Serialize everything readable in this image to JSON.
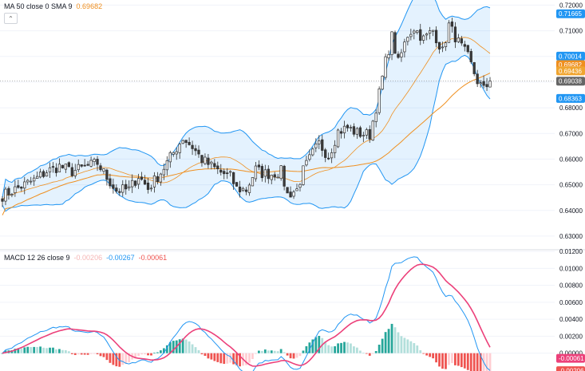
{
  "legend_ma": {
    "label": "MA 50 close 0 SMA 9",
    "value": "0.69682"
  },
  "legend_macd": {
    "label": "MACD 12 26 close 9",
    "hist": "-0.00206",
    "macd": "-0.00267",
    "signal": "-0.00061"
  },
  "collapse_icon": "chevron-up-icon",
  "colors": {
    "up": "#ffffff",
    "down": "#3a3a3a",
    "wick": "#2f2f2f",
    "bb_line": "#2196f3",
    "bb_fill": "rgba(33,150,243,0.12)",
    "ma": "#ef8f1f",
    "basis": "#2196f3",
    "macd_line": "#2196f3",
    "signal_line": "#ec407a",
    "hist_up_strong": "#26a69a",
    "hist_up_weak": "#b2dfdb",
    "hist_down_strong": "#ef5350",
    "hist_down_weak": "#ffcdd2",
    "badge_blue": "#2196f3",
    "badge_orange": "#ef8f1f",
    "badge_gray": "#666666"
  },
  "price_axis": {
    "ticks": [
      "0.72000",
      "0.71000",
      "0.70000",
      "0.69000",
      "0.68000",
      "0.67000",
      "0.66000",
      "0.65000",
      "0.64000",
      "0.63000"
    ],
    "badges": [
      {
        "text": "0.71665",
        "value": 0.71665,
        "color": "#2196f3"
      },
      {
        "text": "0.70014",
        "value": 0.70014,
        "color": "#2196f3"
      },
      {
        "text": "0.69682",
        "value": 0.69682,
        "color": "#ef8f1f"
      },
      {
        "text": "0.69436",
        "value": 0.69436,
        "color": "#f0a530"
      },
      {
        "text": "0.69038",
        "value": 0.69038,
        "color": "#666666"
      },
      {
        "text": "0.68363",
        "value": 0.68363,
        "color": "#2196f3"
      }
    ],
    "last_price": 0.69038
  },
  "macd_axis": {
    "ticks": [
      "0.01200",
      "0.01000",
      "0.00800",
      "0.00600",
      "0.00400",
      "0.00200",
      "0.00000"
    ],
    "badges": [
      {
        "text": "-0.00061",
        "value": -0.00061,
        "color": "#ec407a"
      },
      {
        "text": "-0.00206",
        "value": -0.00206,
        "color": "#ef5350"
      }
    ]
  },
  "chart_data": {
    "type": "candlestick",
    "price_ylim": [
      0.625,
      0.722
    ],
    "macd_ylim": [
      -0.0021,
      0.0121
    ],
    "anchors": [
      [
        0,
        0.6458
      ],
      [
        5,
        0.6488
      ],
      [
        10,
        0.6518
      ],
      [
        14,
        0.6552
      ],
      [
        18,
        0.6572
      ],
      [
        22,
        0.6552
      ],
      [
        26,
        0.6568
      ],
      [
        30,
        0.6585
      ],
      [
        33,
        0.6528
      ],
      [
        36,
        0.6478
      ],
      [
        40,
        0.6482
      ],
      [
        43,
        0.6535
      ],
      [
        46,
        0.6485
      ],
      [
        50,
        0.6548
      ],
      [
        54,
        0.6625
      ],
      [
        57,
        0.6682
      ],
      [
        60,
        0.6648
      ],
      [
        63,
        0.6598
      ],
      [
        66,
        0.6572
      ],
      [
        69,
        0.6548
      ],
      [
        72,
        0.6532
      ],
      [
        74,
        0.6485
      ],
      [
        77,
        0.648
      ],
      [
        80,
        0.656
      ],
      [
        82,
        0.6545
      ],
      [
        85,
        0.6542
      ],
      [
        88,
        0.6552
      ],
      [
        90,
        0.6462
      ],
      [
        93,
        0.648
      ],
      [
        95,
        0.6555
      ],
      [
        98,
        0.6622
      ],
      [
        100,
        0.666
      ],
      [
        103,
        0.6612
      ],
      [
        106,
        0.6708
      ],
      [
        109,
        0.6722
      ],
      [
        112,
        0.6702
      ],
      [
        116,
        0.6695
      ],
      [
        119,
        0.6855
      ],
      [
        121,
        0.698
      ],
      [
        123,
        0.7078
      ],
      [
        125,
        0.6975
      ],
      [
        128,
        0.7085
      ],
      [
        130,
        0.7112
      ],
      [
        133,
        0.7068
      ],
      [
        136,
        0.7102
      ],
      [
        139,
        0.7018
      ],
      [
        141,
        0.7122
      ],
      [
        144,
        0.7055
      ],
      [
        147,
        0.6998
      ],
      [
        150,
        0.6905
      ],
      [
        152,
        0.687
      ],
      [
        154,
        0.6903
      ]
    ]
  }
}
